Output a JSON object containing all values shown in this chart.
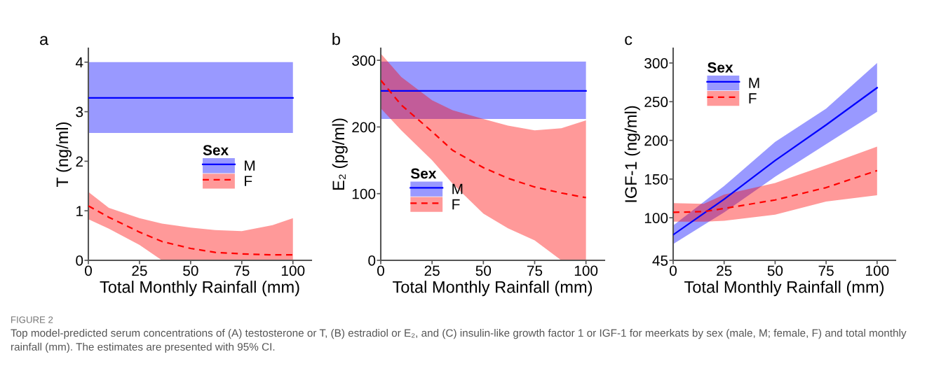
{
  "chart_data": [
    {
      "type": "line",
      "title": "a",
      "xlabel": "Total Monthly Rainfall (mm)",
      "ylabel": "T (ng/ml)",
      "legend_title": "Sex",
      "legend": "center right",
      "xlim": [
        0,
        109
      ],
      "xticks": [
        0,
        25,
        50,
        75,
        100
      ],
      "ylim": [
        0,
        4.28
      ],
      "yticks": [
        0,
        1,
        2,
        3,
        4
      ],
      "grid": false,
      "series": [
        {
          "name": "M",
          "color": "#0000ff",
          "line_style": "solid",
          "x": [
            0,
            100
          ],
          "values": [
            3.28,
            3.28
          ],
          "lower": [
            2.57,
            2.57
          ],
          "upper": [
            4.0,
            4.0
          ]
        },
        {
          "name": "F",
          "color": "#ff0000",
          "line_style": "dashed",
          "x": [
            0,
            10,
            25,
            36,
            50,
            62,
            75,
            90,
            100
          ],
          "values": [
            1.1,
            0.87,
            0.57,
            0.38,
            0.24,
            0.16,
            0.13,
            0.11,
            0.11
          ],
          "lower": [
            0.83,
            0.64,
            0.31,
            0,
            0,
            0,
            0,
            0,
            0
          ],
          "upper": [
            1.38,
            1.06,
            0.85,
            0.74,
            0.66,
            0.61,
            0.59,
            0.71,
            0.85
          ]
        }
      ]
    },
    {
      "type": "line",
      "title": "b",
      "xlabel": "Total Monthly Rainfall (mm)",
      "ylabel": "E₂ (pg/ml)",
      "legend_title": "Sex",
      "legend": "lower left",
      "xlim": [
        0,
        109
      ],
      "xticks": [
        0,
        25,
        50,
        75,
        100
      ],
      "ylim": [
        0,
        318
      ],
      "yticks": [
        0,
        100,
        200,
        300
      ],
      "grid": false,
      "series": [
        {
          "name": "M",
          "color": "#0000ff",
          "line_style": "solid",
          "x": [
            0,
            100
          ],
          "values": [
            254,
            254
          ],
          "lower": [
            212,
            212
          ],
          "upper": [
            298,
            298
          ]
        },
        {
          "name": "F",
          "color": "#ff0000",
          "line_style": "dashed",
          "x": [
            0,
            10,
            25,
            35,
            50,
            62,
            75,
            88,
            100
          ],
          "values": [
            270,
            233,
            193,
            165,
            139,
            123,
            110,
            101,
            94
          ],
          "lower": [
            228,
            195,
            150,
            115,
            70,
            48,
            30,
            0,
            0
          ],
          "upper": [
            310,
            275,
            240,
            225,
            212,
            202,
            195,
            198,
            210
          ]
        }
      ]
    },
    {
      "type": "line",
      "title": "c",
      "xlabel": "Total Monthly Rainfall (mm)",
      "ylabel": "IGF-1 (ng/ml)",
      "legend_title": "Sex",
      "legend": "upper left",
      "xlim": [
        0,
        109
      ],
      "xticks": [
        0,
        25,
        50,
        75,
        100
      ],
      "ylim": [
        45,
        319
      ],
      "yticks": [
        45,
        100,
        150,
        200,
        250,
        300
      ],
      "grid": false,
      "series": [
        {
          "name": "M",
          "color": "#0000ff",
          "line_style": "solid",
          "x": [
            0,
            25,
            50,
            75,
            100
          ],
          "values": [
            78,
            124,
            174,
            220,
            268
          ],
          "lower": [
            66,
            107,
            153,
            195,
            237
          ],
          "upper": [
            90,
            141,
            198,
            241,
            300
          ]
        },
        {
          "name": "F",
          "color": "#ff0000",
          "line_style": "dashed",
          "x": [
            0,
            15,
            25,
            50,
            75,
            100
          ],
          "values": [
            107,
            108,
            112,
            123,
            139,
            161
          ],
          "lower": [
            95,
            95,
            96,
            104,
            121,
            129
          ],
          "upper": [
            119,
            118,
            130,
            145,
            168,
            192
          ]
        }
      ],
      "annotations": [
        "FIGURE 2",
        "Top model-predicted serum concentrations of (A) testosterone or T, (B) estradiol or E₂, and (C) insulin-like growth factor 1 or IGF-1 for meerkats by sex (male, M; female, F) and total monthly rainfall (mm). The estimates are presented with 95% CI."
      ]
    }
  ]
}
